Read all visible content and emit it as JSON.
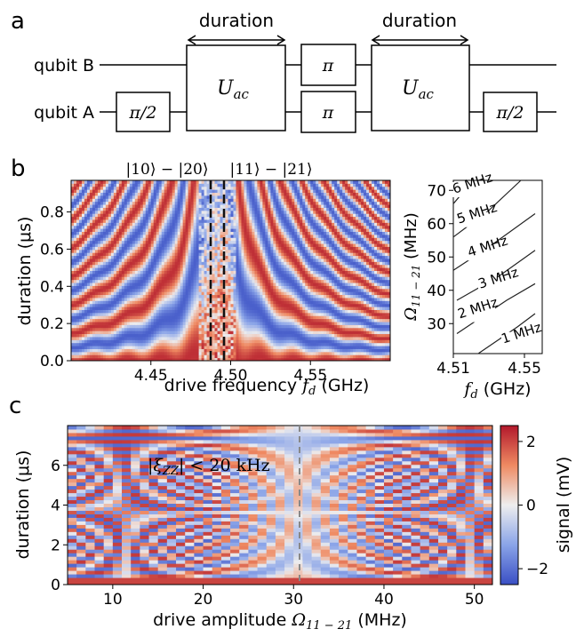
{
  "panels": {
    "a": {
      "letter": "a",
      "qubit_b": "qubit B",
      "qubit_a": "qubit A",
      "duration_label": "duration",
      "gate_pi_half": "π/2",
      "gate_pi": "π",
      "gate_uac": "U",
      "gate_uac_sub": "ac"
    },
    "b": {
      "letter": "b",
      "top_label_left": "|10⟩ − |20⟩",
      "top_label_right": "|11⟩ − |21⟩",
      "ylabel": "duration (μs)",
      "xlabel_text": "drive frequency ",
      "xlabel_var": "f",
      "xlabel_sub": "d",
      "xlabel_unit": " (GHz)",
      "xticks": [
        "4.45",
        "4.50",
        "4.55"
      ],
      "yticks": [
        "0.0",
        "0.2",
        "0.4",
        "0.6",
        "0.8"
      ]
    },
    "b_inset": {
      "ylabel_var": "Ω",
      "ylabel_sub": "11 − 21",
      "ylabel_unit": " (MHz)",
      "xlabel_var": "f",
      "xlabel_sub": "d",
      "xlabel_unit": " (GHz)",
      "xticks": [
        "4.51",
        "4.55"
      ],
      "yticks": [
        "30",
        "40",
        "50",
        "60",
        "70"
      ],
      "contour_labels": [
        "6 MHz",
        "5 MHz",
        "4 MHz",
        "3 MHz",
        "2 MHz",
        "1 MHz"
      ]
    },
    "c": {
      "letter": "c",
      "annotation_var": "|ξ",
      "annotation_sub": "ZZ",
      "annotation_rest": "| < 20 kHz",
      "ylabel": "duration (μs)",
      "xlabel_text": "drive amplitude ",
      "xlabel_var": "Ω",
      "xlabel_sub": "11 − 21",
      "xlabel_unit": " (MHz)",
      "xticks": [
        "10",
        "20",
        "30",
        "40",
        "50"
      ],
      "yticks": [
        "0",
        "2",
        "4",
        "6"
      ],
      "colorbar_label": "signal (mV)",
      "colorbar_ticks": [
        "2",
        "0",
        "−2"
      ]
    }
  },
  "colors": {
    "red": "#b2182b",
    "blue": "#3a55c8",
    "neutral": "#e8e8ec"
  },
  "chart_data": [
    {
      "type": "heatmap",
      "panel": "b",
      "xlabel": "drive frequency f_d (GHz)",
      "ylabel": "duration (μs)",
      "xlim": [
        4.4,
        4.6
      ],
      "ylim": [
        0.0,
        0.97
      ],
      "vertical_markers": [
        4.49,
        4.497
      ]
    },
    {
      "type": "line",
      "panel": "b inset",
      "xlabel": "f_d (GHz)",
      "ylabel": "Ω_11−21 (MHz)",
      "xlim": [
        4.51,
        4.56
      ],
      "ylim": [
        21,
        73
      ],
      "series": [
        {
          "name": "6 MHz",
          "x": [
            4.51,
            4.518
          ],
          "y": [
            66,
            71
          ]
        },
        {
          "name": "5 MHz",
          "x": [
            4.51,
            4.53,
            4.548
          ],
          "y": [
            56,
            64,
            73
          ]
        },
        {
          "name": "4 MHz",
          "x": [
            4.51,
            4.53,
            4.556
          ],
          "y": [
            46,
            53,
            63
          ]
        },
        {
          "name": "3 MHz",
          "x": [
            4.512,
            4.535,
            4.556
          ],
          "y": [
            37,
            44,
            52
          ]
        },
        {
          "name": "2 MHz",
          "x": [
            4.512,
            4.54,
            4.556
          ],
          "y": [
            27,
            37,
            42
          ]
        },
        {
          "name": "1 MHz",
          "x": [
            4.524,
            4.546,
            4.556
          ],
          "y": [
            21,
            29,
            33
          ]
        }
      ]
    },
    {
      "type": "heatmap",
      "panel": "c",
      "xlabel": "drive amplitude Ω_11−21 (MHz)",
      "ylabel": "duration (μs)",
      "xlim": [
        5,
        52
      ],
      "ylim": [
        0,
        8
      ],
      "vertical_marker": 30.5,
      "colorbar_range": [
        -2.5,
        2.5
      ]
    }
  ]
}
